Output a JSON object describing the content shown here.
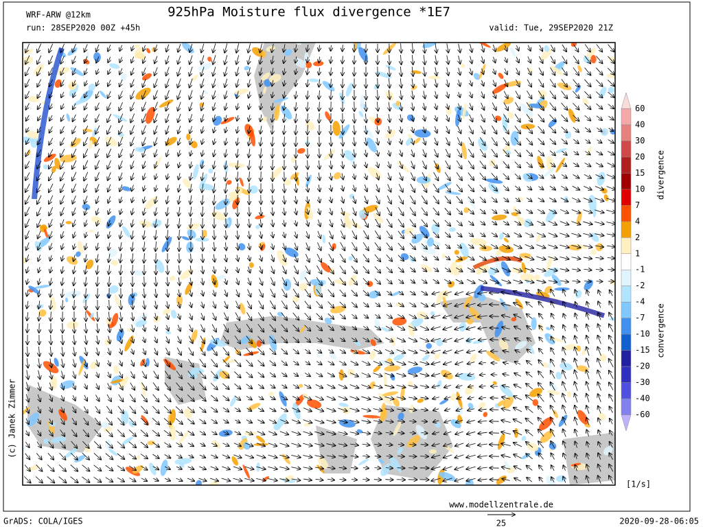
{
  "header": {
    "model": "WRF-ARW @12km",
    "title": "925hPa Moisture flux divergence *1E7",
    "run": "run: 28SEP2020 00Z +45h",
    "valid": "valid: Tue, 29SEP2020 21Z"
  },
  "colorbar": {
    "labels": [
      60,
      40,
      30,
      20,
      15,
      10,
      7,
      4,
      2,
      1,
      -1,
      -2,
      -4,
      -7,
      -10,
      -15,
      -20,
      -30,
      -40,
      -60
    ],
    "colors": [
      "#fadcdc",
      "#f4a8a8",
      "#e88080",
      "#d04848",
      "#b02020",
      "#a00000",
      "#e00000",
      "#ff5000",
      "#f5a000",
      "#fff0c0",
      "#ffffff",
      "#e0f4ff",
      "#b0e4ff",
      "#80c8ff",
      "#4090f0",
      "#1060d0",
      "#2020a0",
      "#3030c0",
      "#5050e0",
      "#8080f0",
      "#c0b0ff"
    ],
    "upper_label": "divergence",
    "lower_label": "convergence",
    "unit": "[1/s]"
  },
  "footer": {
    "website": "www.modellzentrale.de",
    "software": "GrADS: COLA/IGES",
    "timestamp": "2020-09-28-06:05",
    "copyright": "(c) Janek Zimmer",
    "vector_scale": "25"
  }
}
